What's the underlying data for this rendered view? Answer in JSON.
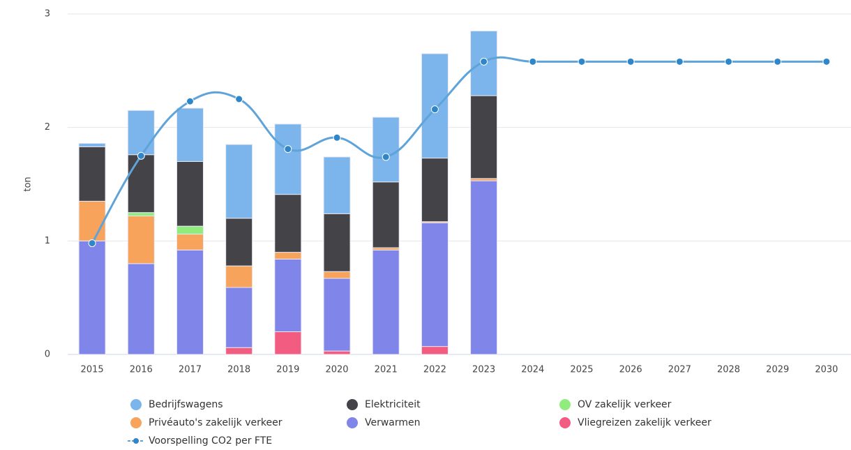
{
  "chart_data": {
    "type": "bar",
    "stacked": true,
    "y_label": "ton",
    "categories": [
      "2015",
      "2016",
      "2017",
      "2018",
      "2019",
      "2020",
      "2021",
      "2022",
      "2023",
      "2024",
      "2025",
      "2026",
      "2027",
      "2028",
      "2029",
      "2030"
    ],
    "ylim": [
      0,
      3
    ],
    "yticks": [
      0,
      1,
      2,
      3
    ],
    "grid": true,
    "legend": "bottom",
    "series": [
      {
        "name": "Bedrijfswagens",
        "color": "#7cb5ec",
        "values": [
          0.03,
          0.39,
          0.47,
          0.65,
          0.62,
          0.5,
          0.57,
          0.92,
          0.57,
          null,
          null,
          null,
          null,
          null,
          null,
          null
        ]
      },
      {
        "name": "Elektriciteit",
        "color": "#434348",
        "values": [
          0.48,
          0.51,
          0.57,
          0.42,
          0.51,
          0.51,
          0.58,
          0.56,
          0.73,
          null,
          null,
          null,
          null,
          null,
          null,
          null
        ]
      },
      {
        "name": "OV zakelijk verkeer",
        "color": "#90ed7d",
        "values": [
          0,
          0.03,
          0.07,
          0,
          0,
          0,
          0,
          0,
          0,
          null,
          null,
          null,
          null,
          null,
          null,
          null
        ]
      },
      {
        "name": "Privéauto's zakelijk verkeer",
        "color": "#f7a35c",
        "values": [
          0.35,
          0.42,
          0.14,
          0.19,
          0.06,
          0.06,
          0.02,
          0.01,
          0.02,
          null,
          null,
          null,
          null,
          null,
          null,
          null
        ]
      },
      {
        "name": "Verwarmen",
        "color": "#8085e9",
        "values": [
          1.0,
          0.8,
          0.92,
          0.53,
          0.64,
          0.64,
          0.92,
          1.09,
          1.53,
          null,
          null,
          null,
          null,
          null,
          null,
          null
        ]
      },
      {
        "name": "Vliegreizen zakelijk verkeer",
        "color": "#f15c80",
        "values": [
          0,
          0,
          0,
          0.06,
          0.2,
          0.03,
          0,
          0.07,
          0,
          null,
          null,
          null,
          null,
          null,
          null,
          null
        ]
      },
      {
        "name": "Voorspelling CO2 per FTE",
        "type": "line",
        "color": "#5ea3d9",
        "values": [
          0.98,
          1.75,
          2.23,
          2.25,
          1.81,
          1.91,
          1.74,
          2.16,
          2.58,
          2.58,
          2.58,
          2.58,
          2.58,
          2.58,
          2.58,
          2.58
        ]
      }
    ]
  }
}
